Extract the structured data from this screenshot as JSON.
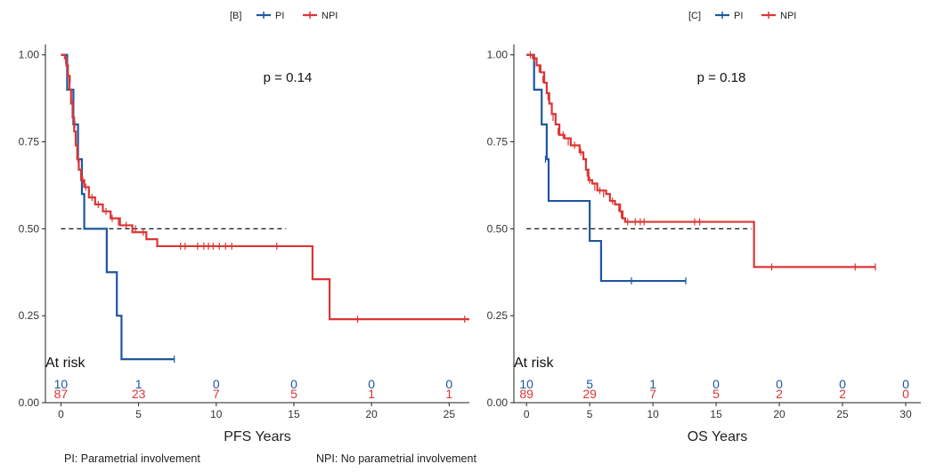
{
  "colors": {
    "pi": "#1f56a0",
    "npi": "#dc3535",
    "axis": "#222222",
    "median": "#111111"
  },
  "chart_data": [
    {
      "type": "line",
      "panel_label": "[B]",
      "legend": [
        "PI",
        "NPI"
      ],
      "legend_position": "top",
      "annotation": "p = 0.14",
      "xlabel": "PFS Years",
      "ylabel": "",
      "xlim": [
        -1,
        26.3
      ],
      "ylim": [
        0,
        1.03
      ],
      "x_ticks": [
        0,
        5,
        10,
        15,
        20,
        25
      ],
      "y_ticks": [
        "0.00",
        "0.25",
        "0.50",
        "0.75",
        "1.00"
      ],
      "y_tick_values": [
        0,
        0.25,
        0.5,
        0.75,
        1.0
      ],
      "median_line": {
        "y": 0.5,
        "x_end": 14.5
      },
      "at_risk_label": "At risk",
      "at_risk_times": [
        0,
        5,
        10,
        15,
        20,
        25
      ],
      "series": [
        {
          "name": "PI",
          "color_key": "pi",
          "steps": [
            [
              0,
              1.0
            ],
            [
              0.4,
              0.9
            ],
            [
              0.8,
              0.8
            ],
            [
              1.1,
              0.7
            ],
            [
              1.35,
              0.6
            ],
            [
              1.5,
              0.5
            ],
            [
              2.95,
              0.375
            ],
            [
              3.6,
              0.25
            ],
            [
              3.9,
              0.125
            ],
            [
              7.3,
              0.125
            ]
          ],
          "censors": [
            [
              7.3,
              0.125
            ]
          ],
          "at_risk": [
            "10",
            "1",
            "0",
            "0",
            "0",
            "0"
          ]
        },
        {
          "name": "NPI",
          "color_key": "npi",
          "steps": [
            [
              0,
              1.0
            ],
            [
              0.25,
              0.99
            ],
            [
              0.35,
              0.97
            ],
            [
              0.45,
              0.94
            ],
            [
              0.55,
              0.9
            ],
            [
              0.65,
              0.86
            ],
            [
              0.75,
              0.82
            ],
            [
              0.85,
              0.78
            ],
            [
              0.95,
              0.74
            ],
            [
              1.05,
              0.7
            ],
            [
              1.15,
              0.67
            ],
            [
              1.3,
              0.64
            ],
            [
              1.5,
              0.62
            ],
            [
              1.8,
              0.59
            ],
            [
              2.2,
              0.57
            ],
            [
              2.7,
              0.55
            ],
            [
              3.2,
              0.53
            ],
            [
              3.8,
              0.51
            ],
            [
              4.6,
              0.49
            ],
            [
              5.5,
              0.47
            ],
            [
              6.2,
              0.45
            ],
            [
              16.2,
              0.355
            ],
            [
              17.3,
              0.24
            ],
            [
              26.3,
              0.24
            ]
          ],
          "censors": [
            [
              0.3,
              0.985
            ],
            [
              0.45,
              0.95
            ],
            [
              0.6,
              0.93
            ],
            [
              0.75,
              0.86
            ],
            [
              0.9,
              0.8
            ],
            [
              1.1,
              0.7
            ],
            [
              1.4,
              0.64
            ],
            [
              1.6,
              0.62
            ],
            [
              2.0,
              0.59
            ],
            [
              2.4,
              0.57
            ],
            [
              2.9,
              0.55
            ],
            [
              3.3,
              0.53
            ],
            [
              3.7,
              0.52
            ],
            [
              4.2,
              0.51
            ],
            [
              4.8,
              0.5
            ],
            [
              5.3,
              0.49
            ],
            [
              7.7,
              0.45
            ],
            [
              8.0,
              0.45
            ],
            [
              8.8,
              0.45
            ],
            [
              9.2,
              0.45
            ],
            [
              9.5,
              0.45
            ],
            [
              9.8,
              0.45
            ],
            [
              10.2,
              0.45
            ],
            [
              10.6,
              0.45
            ],
            [
              11.0,
              0.45
            ],
            [
              13.9,
              0.45
            ],
            [
              19.1,
              0.24
            ],
            [
              26.0,
              0.24
            ]
          ],
          "at_risk": [
            "87",
            "23",
            "7",
            "5",
            "1",
            "1"
          ]
        }
      ]
    },
    {
      "type": "line",
      "panel_label": "[C]",
      "legend": [
        "PI",
        "NPI"
      ],
      "legend_position": "top",
      "annotation": "p = 0.18",
      "xlabel": "OS Years",
      "ylabel": "",
      "xlim": [
        -1,
        31.2
      ],
      "ylim": [
        0,
        1.03
      ],
      "x_ticks": [
        0,
        5,
        10,
        15,
        20,
        25,
        30
      ],
      "y_ticks": [
        "0.00",
        "0.25",
        "0.50",
        "0.75",
        "1.00"
      ],
      "y_tick_values": [
        0,
        0.25,
        0.5,
        0.75,
        1.0
      ],
      "median_line": {
        "y": 0.5,
        "x_end": 17.8
      },
      "at_risk_label": "At risk",
      "at_risk_times": [
        0,
        5,
        10,
        15,
        20,
        25,
        30
      ],
      "series": [
        {
          "name": "PI",
          "color_key": "pi",
          "steps": [
            [
              0,
              1.0
            ],
            [
              0.6,
              0.9
            ],
            [
              1.2,
              0.8
            ],
            [
              1.6,
              0.7
            ],
            [
              1.75,
              0.58
            ],
            [
              5.0,
              0.465
            ],
            [
              5.9,
              0.35
            ],
            [
              12.6,
              0.35
            ]
          ],
          "censors": [
            [
              1.5,
              0.7
            ],
            [
              8.3,
              0.35
            ],
            [
              12.6,
              0.35
            ]
          ],
          "at_risk": [
            "10",
            "5",
            "1",
            "0",
            "0",
            "0",
            "0"
          ]
        },
        {
          "name": "NPI",
          "color_key": "npi",
          "steps": [
            [
              0,
              1.0
            ],
            [
              0.5,
              0.99
            ],
            [
              0.8,
              0.97
            ],
            [
              1.1,
              0.95
            ],
            [
              1.4,
              0.92
            ],
            [
              1.6,
              0.89
            ],
            [
              1.8,
              0.86
            ],
            [
              2.0,
              0.83
            ],
            [
              2.3,
              0.8
            ],
            [
              2.6,
              0.77
            ],
            [
              3.0,
              0.76
            ],
            [
              3.5,
              0.74
            ],
            [
              4.2,
              0.72
            ],
            [
              4.5,
              0.7
            ],
            [
              4.7,
              0.67
            ],
            [
              4.9,
              0.64
            ],
            [
              5.2,
              0.63
            ],
            [
              5.6,
              0.61
            ],
            [
              6.3,
              0.6
            ],
            [
              6.6,
              0.58
            ],
            [
              7.0,
              0.57
            ],
            [
              7.4,
              0.55
            ],
            [
              7.6,
              0.53
            ],
            [
              7.8,
              0.52
            ],
            [
              18.0,
              0.39
            ],
            [
              27.6,
              0.39
            ]
          ],
          "censors": [
            [
              0.3,
              1.0
            ],
            [
              0.6,
              0.99
            ],
            [
              1.0,
              0.96
            ],
            [
              1.3,
              0.93
            ],
            [
              1.7,
              0.88
            ],
            [
              2.1,
              0.82
            ],
            [
              2.5,
              0.78
            ],
            [
              2.9,
              0.77
            ],
            [
              3.3,
              0.75
            ],
            [
              3.8,
              0.74
            ],
            [
              4.3,
              0.72
            ],
            [
              4.8,
              0.66
            ],
            [
              5.0,
              0.64
            ],
            [
              5.4,
              0.62
            ],
            [
              5.8,
              0.61
            ],
            [
              6.1,
              0.6
            ],
            [
              6.8,
              0.58
            ],
            [
              7.3,
              0.56
            ],
            [
              7.5,
              0.54
            ],
            [
              8.0,
              0.52
            ],
            [
              8.6,
              0.52
            ],
            [
              9.0,
              0.52
            ],
            [
              9.3,
              0.52
            ],
            [
              13.3,
              0.52
            ],
            [
              13.7,
              0.52
            ],
            [
              19.4,
              0.39
            ],
            [
              26.0,
              0.39
            ],
            [
              27.6,
              0.39
            ]
          ],
          "at_risk": [
            "89",
            "29",
            "7",
            "5",
            "2",
            "2",
            "0"
          ]
        }
      ]
    }
  ],
  "footnotes": {
    "pi": "PI: Parametrial involvement",
    "npi": "NPI: No parametrial involvement"
  }
}
